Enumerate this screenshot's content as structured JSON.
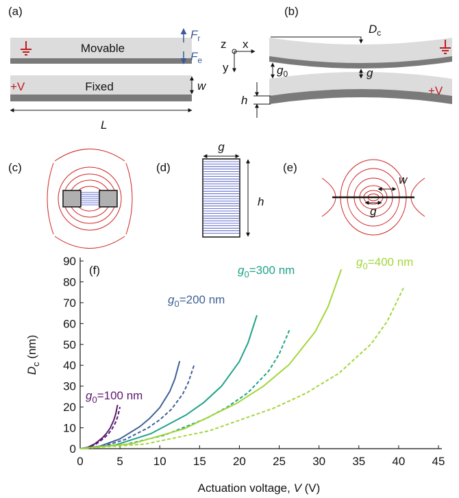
{
  "panels": {
    "a": {
      "label": "(a)",
      "movable": "Movable",
      "fixed": "Fixed",
      "voltage": "+V",
      "force_r": {
        "symbol": "F",
        "subscript": "r"
      },
      "force_e": {
        "symbol": "F",
        "subscript": "e"
      },
      "width": "w",
      "length": "L"
    },
    "b": {
      "label": "(b)",
      "deflection": {
        "symbol": "D",
        "subscript": "c"
      },
      "axis_z": "z",
      "axis_x": "x",
      "axis_y": "y",
      "initial_gap": {
        "symbol": "g",
        "subscript": "0"
      },
      "gap": "g",
      "thickness": "h",
      "voltage": "+V"
    },
    "c": {
      "label": "(c)"
    },
    "d": {
      "label": "(d)",
      "gap": "g",
      "thickness": "h"
    },
    "e": {
      "label": "(e)",
      "width": "w",
      "gap": "g"
    }
  },
  "chart_data": {
    "type": "line",
    "panel_label": "(f)",
    "x_label": {
      "text": "Actuation voltage,",
      "symbol": "V",
      "unit": "(V)"
    },
    "y_label": {
      "symbol": "D",
      "subscript": "c",
      "unit": "(nm)"
    },
    "xlim": [
      0,
      45
    ],
    "xticks": [
      0,
      5,
      10,
      15,
      20,
      25,
      30,
      35,
      40,
      45
    ],
    "ylim": [
      0,
      90
    ],
    "yticks": [
      0,
      10,
      20,
      30,
      40,
      50,
      60,
      70,
      80,
      90
    ],
    "series": [
      {
        "color": "#5a1a6e",
        "dashed": false,
        "x": [
          0,
          0.94,
          1.88,
          2.82,
          3.29,
          3.76,
          4.23,
          4.47,
          4.7
        ],
        "values": [
          0,
          0.6,
          2.4,
          5.3,
          7.3,
          9.8,
          13.7,
          16.7,
          21
        ]
      },
      {
        "color": "#5a1a6e",
        "dashed": true,
        "x": [
          0,
          1,
          2,
          3,
          3.5,
          4,
          4.5,
          4.75,
          5
        ],
        "values": [
          0,
          0.6,
          2.2,
          5.1,
          6.9,
          9.4,
          13,
          15.9,
          20
        ]
      },
      {
        "color": "#3e5f95",
        "dashed": false,
        "x": [
          0,
          2.5,
          5,
          7.5,
          8.75,
          10,
          11.25,
          11.88,
          12.5
        ],
        "values": [
          0,
          1.2,
          4.7,
          10.6,
          14.6,
          19.7,
          27.4,
          33.3,
          42
        ]
      },
      {
        "color": "#3e5f95",
        "dashed": true,
        "x": [
          0,
          2.86,
          5.72,
          8.58,
          10.01,
          11.44,
          12.87,
          13.59,
          14.3
        ],
        "values": [
          0,
          1.1,
          4.5,
          10.1,
          13.9,
          18.8,
          26.1,
          31.8,
          40
        ]
      },
      {
        "color": "#1fa187",
        "dashed": false,
        "x": [
          0,
          4.44,
          8.88,
          13.32,
          15.54,
          17.76,
          19.98,
          21.09,
          22.2
        ],
        "values": [
          0,
          1.8,
          7.2,
          16.2,
          22.2,
          30,
          41.7,
          50.8,
          64
        ]
      },
      {
        "color": "#1fa187",
        "dashed": true,
        "x": [
          0,
          5.26,
          10.52,
          15.78,
          18.41,
          21.04,
          23.67,
          24.99,
          26.3
        ],
        "values": [
          0,
          1.6,
          6.4,
          14.4,
          19.8,
          26.7,
          37.2,
          45.3,
          57
        ]
      },
      {
        "color": "#a3d63a",
        "dashed": false,
        "x": [
          0,
          6.56,
          13.12,
          19.68,
          22.96,
          26.24,
          29.52,
          31.16,
          32.8
        ],
        "values": [
          0,
          2.4,
          9.6,
          21.8,
          29.8,
          40.3,
          56.1,
          68.3,
          86
        ]
      },
      {
        "color": "#a3d63a",
        "dashed": true,
        "x": [
          0,
          8.12,
          16.24,
          24.36,
          28.42,
          32.48,
          36.54,
          38.57,
          40.6
        ],
        "values": [
          0,
          2.2,
          8.6,
          19.5,
          26.7,
          36.1,
          50.2,
          61.1,
          77
        ]
      }
    ],
    "annotations": [
      {
        "symbol": "g",
        "subscript": "0",
        "text": "=100 nm",
        "color": "#5a1a6e"
      },
      {
        "symbol": "g",
        "subscript": "0",
        "text": "=200 nm",
        "color": "#3e5f95"
      },
      {
        "symbol": "g",
        "subscript": "0",
        "text": "=300 nm",
        "color": "#1fa187"
      },
      {
        "symbol": "g",
        "subscript": "0",
        "text": "=400 nm",
        "color": "#a3d63a"
      }
    ]
  }
}
